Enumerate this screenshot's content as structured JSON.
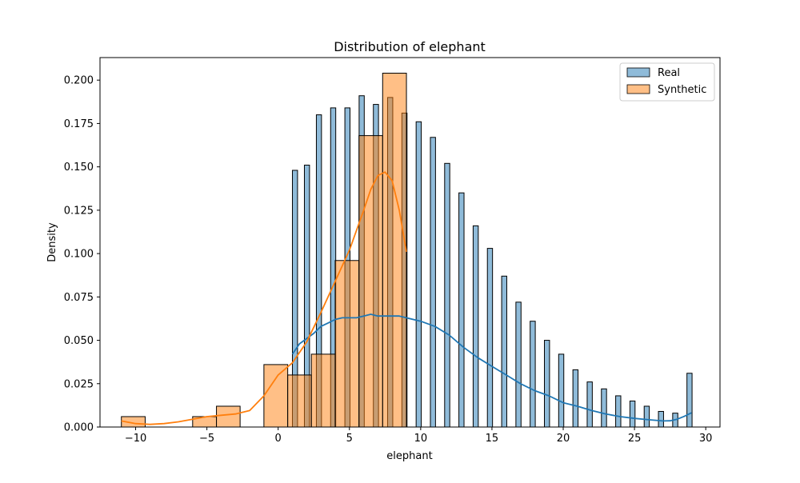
{
  "chart_data": {
    "type": "bar",
    "title": "Distribution of elephant",
    "xlabel": "elephant",
    "ylabel": "Density",
    "xlim": [
      -12.5,
      31.0
    ],
    "ylim": [
      0,
      0.213
    ],
    "xticks": [
      -10,
      -5,
      0,
      5,
      10,
      15,
      20,
      25,
      30
    ],
    "yticks": [
      0.0,
      0.025,
      0.05,
      0.075,
      0.1,
      0.125,
      0.15,
      0.175,
      0.2
    ],
    "xtick_labels": [
      "−10",
      "−5",
      "0",
      "5",
      "10",
      "15",
      "20",
      "25",
      "30"
    ],
    "ytick_labels": [
      "0.000",
      "0.025",
      "0.050",
      "0.075",
      "0.100",
      "0.125",
      "0.150",
      "0.175",
      "0.200"
    ],
    "grid": false,
    "legend_position": "top-right",
    "series": [
      {
        "name": "Real",
        "color": "#1f77b4",
        "bins": [
          {
            "x0": 1.0,
            "x1": 1.36,
            "value": 0.148
          },
          {
            "x0": 1.84,
            "x1": 2.2,
            "value": 0.151
          },
          {
            "x0": 2.68,
            "x1": 3.04,
            "value": 0.18
          },
          {
            "x0": 3.68,
            "x1": 4.04,
            "value": 0.184
          },
          {
            "x0": 4.68,
            "x1": 5.04,
            "value": 0.184
          },
          {
            "x0": 5.68,
            "x1": 6.04,
            "value": 0.191
          },
          {
            "x0": 6.68,
            "x1": 7.04,
            "value": 0.186
          },
          {
            "x0": 7.68,
            "x1": 8.04,
            "value": 0.19
          },
          {
            "x0": 8.68,
            "x1": 9.04,
            "value": 0.181
          },
          {
            "x0": 9.68,
            "x1": 10.04,
            "value": 0.176
          },
          {
            "x0": 10.68,
            "x1": 11.04,
            "value": 0.167
          },
          {
            "x0": 11.68,
            "x1": 12.04,
            "value": 0.152
          },
          {
            "x0": 12.68,
            "x1": 13.04,
            "value": 0.135
          },
          {
            "x0": 13.68,
            "x1": 14.04,
            "value": 0.116
          },
          {
            "x0": 14.68,
            "x1": 15.04,
            "value": 0.103
          },
          {
            "x0": 15.68,
            "x1": 16.04,
            "value": 0.087
          },
          {
            "x0": 16.68,
            "x1": 17.04,
            "value": 0.072
          },
          {
            "x0": 17.68,
            "x1": 18.04,
            "value": 0.061
          },
          {
            "x0": 18.68,
            "x1": 19.04,
            "value": 0.05
          },
          {
            "x0": 19.68,
            "x1": 20.04,
            "value": 0.042
          },
          {
            "x0": 20.68,
            "x1": 21.04,
            "value": 0.033
          },
          {
            "x0": 21.68,
            "x1": 22.04,
            "value": 0.026
          },
          {
            "x0": 22.68,
            "x1": 23.04,
            "value": 0.022
          },
          {
            "x0": 23.68,
            "x1": 24.04,
            "value": 0.018
          },
          {
            "x0": 24.68,
            "x1": 25.04,
            "value": 0.015
          },
          {
            "x0": 25.68,
            "x1": 26.04,
            "value": 0.012
          },
          {
            "x0": 26.68,
            "x1": 27.04,
            "value": 0.009
          },
          {
            "x0": 27.68,
            "x1": 28.04,
            "value": 0.008
          },
          {
            "x0": 28.68,
            "x1": 29.04,
            "value": 0.031
          }
        ],
        "kde": {
          "x": [
            1.0,
            1.5,
            2.0,
            2.5,
            3.0,
            3.5,
            4.0,
            4.5,
            5.0,
            5.5,
            6.0,
            6.5,
            7.0,
            7.5,
            8.0,
            8.5,
            9.0,
            10.0,
            11.0,
            12.0,
            13.0,
            14.0,
            15.0,
            16.0,
            17.0,
            18.0,
            19.0,
            20.0,
            21.0,
            22.0,
            23.0,
            24.0,
            25.0,
            26.0,
            27.0,
            27.5,
            28.0,
            28.5,
            29.0
          ],
          "y": [
            0.042,
            0.048,
            0.051,
            0.054,
            0.058,
            0.06,
            0.062,
            0.063,
            0.063,
            0.063,
            0.064,
            0.065,
            0.064,
            0.064,
            0.064,
            0.064,
            0.063,
            0.061,
            0.058,
            0.053,
            0.046,
            0.04,
            0.035,
            0.03,
            0.025,
            0.021,
            0.018,
            0.014,
            0.012,
            0.0095,
            0.0075,
            0.006,
            0.005,
            0.0042,
            0.0035,
            0.0036,
            0.0045,
            0.0062,
            0.0082
          ]
        }
      },
      {
        "name": "Synthetic",
        "color": "#ff7f0e",
        "bins": [
          {
            "x0": -11.0,
            "x1": -9.33,
            "value": 0.006
          },
          {
            "x0": -6.0,
            "x1": -4.33,
            "value": 0.006
          },
          {
            "x0": -4.33,
            "x1": -2.67,
            "value": 0.012
          },
          {
            "x0": -1.0,
            "x1": 0.67,
            "value": 0.036
          },
          {
            "x0": 0.67,
            "x1": 2.33,
            "value": 0.03
          },
          {
            "x0": 2.33,
            "x1": 4.0,
            "value": 0.042
          },
          {
            "x0": 4.0,
            "x1": 5.67,
            "value": 0.096
          },
          {
            "x0": 5.67,
            "x1": 7.33,
            "value": 0.168
          },
          {
            "x0": 7.33,
            "x1": 9.0,
            "value": 0.204
          }
        ],
        "kde": {
          "x": [
            -11.0,
            -10.0,
            -9.0,
            -8.0,
            -7.0,
            -6.0,
            -5.0,
            -4.0,
            -3.0,
            -2.0,
            -1.0,
            0.0,
            1.0,
            2.0,
            3.0,
            4.0,
            5.0,
            6.0,
            6.5,
            7.0,
            7.5,
            8.0,
            8.5,
            9.0
          ],
          "y": [
            0.0035,
            0.002,
            0.0015,
            0.002,
            0.003,
            0.0045,
            0.006,
            0.0068,
            0.0075,
            0.0095,
            0.018,
            0.03,
            0.037,
            0.049,
            0.066,
            0.084,
            0.102,
            0.125,
            0.137,
            0.145,
            0.147,
            0.142,
            0.125,
            0.101
          ]
        }
      }
    ]
  }
}
